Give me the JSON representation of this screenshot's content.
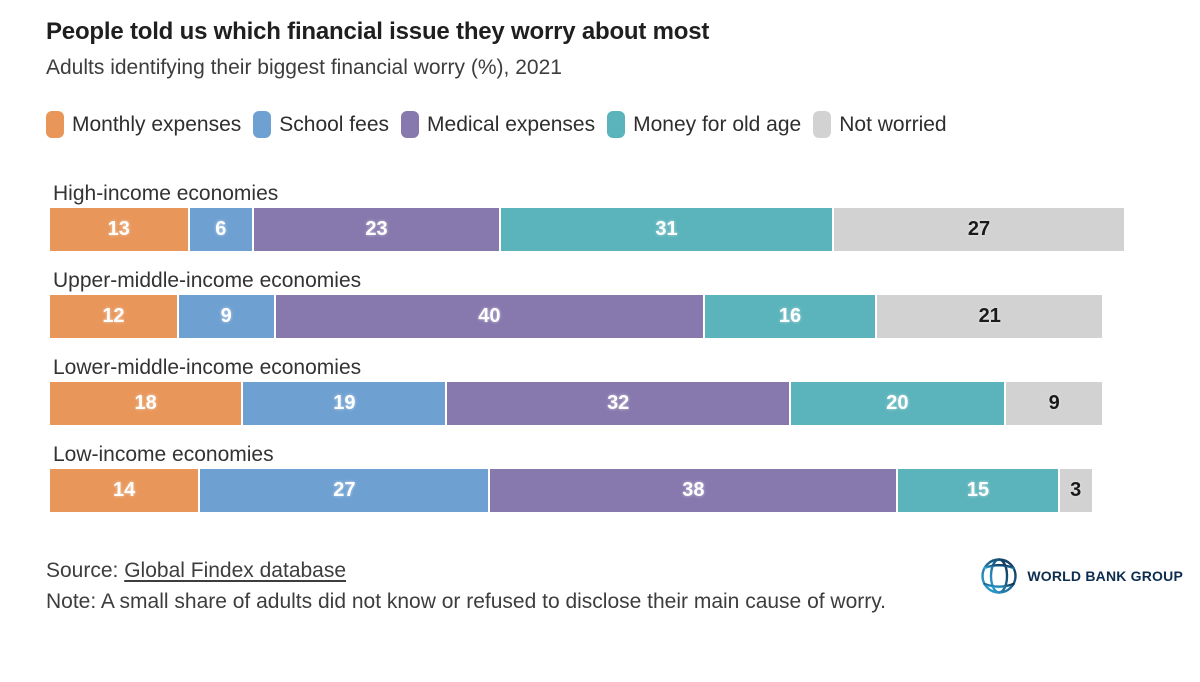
{
  "header": {
    "title": "People told us which financial issue they worry about most",
    "subtitle": "Adults identifying their biggest financial worry (%), 2021"
  },
  "chart_data": {
    "type": "bar",
    "stacked": true,
    "orientation": "horizontal",
    "unit": "%",
    "legend_position": "top",
    "grid": false,
    "x_max": 100,
    "categories": [
      "High-income economies",
      "Upper-middle-income economies",
      "Lower-middle-income economies",
      "Low-income economies"
    ],
    "series": [
      {
        "name": "Monthly expenses",
        "color": "#E8965A",
        "value_color": "#ffffff",
        "values": [
          13,
          12,
          18,
          14
        ]
      },
      {
        "name": "School fees",
        "color": "#6FA0D2",
        "value_color": "#ffffff",
        "values": [
          6,
          9,
          19,
          27
        ]
      },
      {
        "name": "Medical expenses",
        "color": "#8778AD",
        "value_color": "#ffffff",
        "values": [
          23,
          40,
          32,
          38
        ]
      },
      {
        "name": "Money for old age",
        "color": "#5BB3BB",
        "value_color": "#ffffff",
        "values": [
          31,
          16,
          20,
          15
        ]
      },
      {
        "name": "Not worried",
        "color": "#D2D2D2",
        "value_color": "#1a1a1a",
        "values": [
          27,
          21,
          9,
          3
        ]
      }
    ]
  },
  "footer": {
    "source_label": "Source: ",
    "source_link": "Global Findex database",
    "note": "Note: A small share of adults did not know or refused to disclose their main cause of worry.",
    "logo_text": "WORLD BANK GROUP"
  }
}
